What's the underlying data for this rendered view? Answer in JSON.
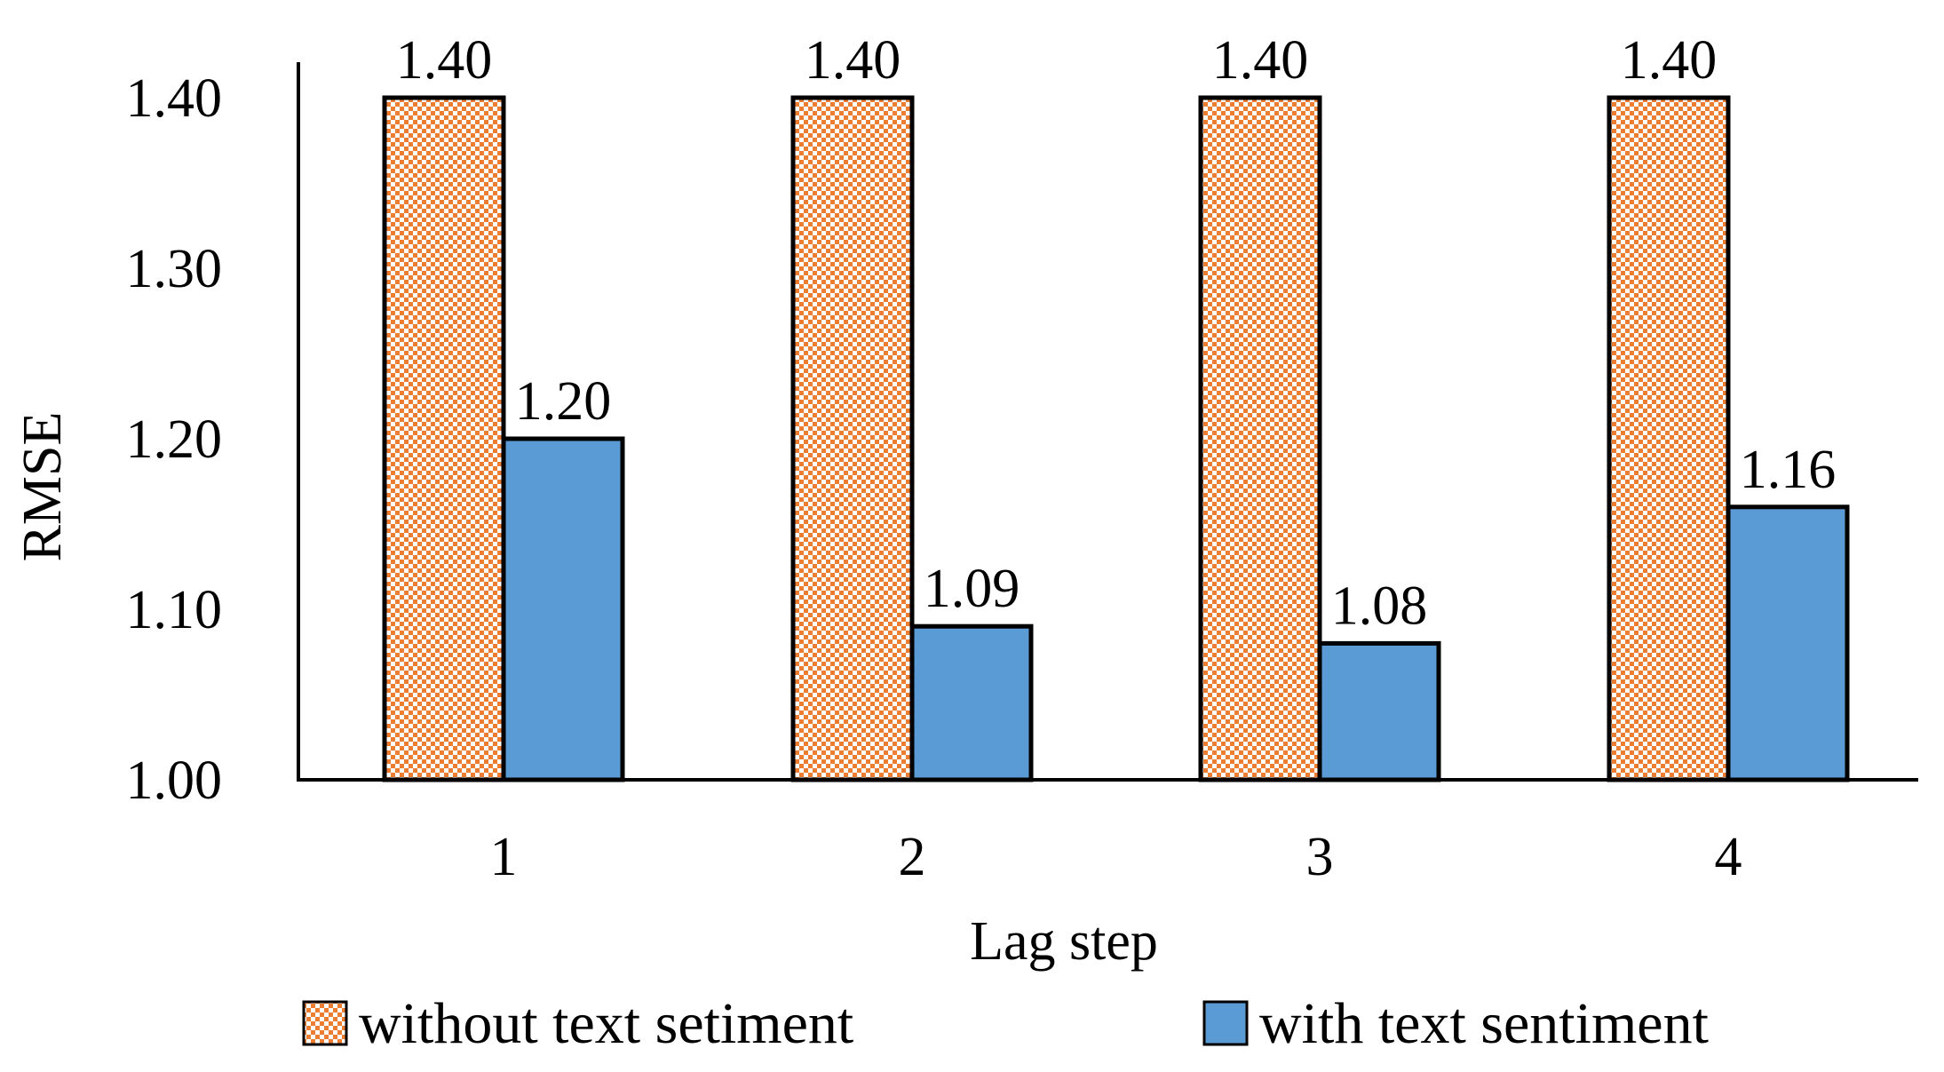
{
  "chart_data": {
    "type": "bar",
    "title": "",
    "xlabel": "Lag step",
    "ylabel": "RMSE",
    "categories": [
      "1",
      "2",
      "3",
      "4"
    ],
    "ylim": [
      1.0,
      1.4
    ],
    "yticks": [
      "1.00",
      "1.10",
      "1.20",
      "1.30",
      "1.40"
    ],
    "grid": false,
    "legend_position": "bottom",
    "series": [
      {
        "name": "without text setiment",
        "values": [
          1.4,
          1.4,
          1.4,
          1.4
        ],
        "labels": [
          "1.40",
          "1.40",
          "1.40",
          "1.40"
        ],
        "color": "#ED7D31",
        "pattern": "checkered"
      },
      {
        "name": "with text sentiment",
        "values": [
          1.2,
          1.09,
          1.08,
          1.16
        ],
        "labels": [
          "1.20",
          "1.09",
          "1.08",
          "1.16"
        ],
        "color": "#5B9BD5",
        "pattern": "solid"
      }
    ]
  }
}
